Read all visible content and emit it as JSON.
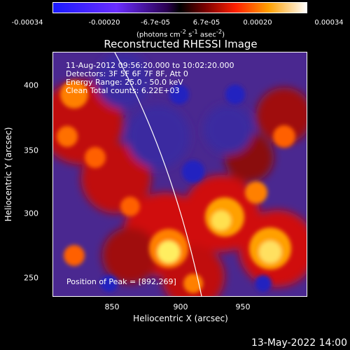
{
  "colorbar": {
    "ticks": [
      "-0.00034",
      "-0.00020",
      "-6.7e-05",
      "6.7e-05",
      "0.00020",
      "0.00034"
    ],
    "unit_html": "(photons cm<sup>-2</sup> s<sup>-1</sup> asec<sup>-2</sup>)"
  },
  "title": "Reconstructed RHESSI Image",
  "annotation": {
    "line1": "11-Aug-2012 09:56:20.000 to 10:02:20.000",
    "line2": "Detectors: 3F 5F 6F 7F 8F, Att 0",
    "line3": "Energy Range: 25.0 - 50.0 keV",
    "line4": "Clean    Total counts: 6.22E+03"
  },
  "peak_label": "Position of Peak = [892,269]",
  "axes": {
    "xlabel": "Heliocentric X (arcsec)",
    "ylabel": "Heliocentric Y (arcsec)",
    "xticks": [
      "850",
      "900",
      "950"
    ],
    "yticks": [
      "400",
      "350",
      "300",
      "250"
    ]
  },
  "footer": "13-May-2022 14:00"
}
